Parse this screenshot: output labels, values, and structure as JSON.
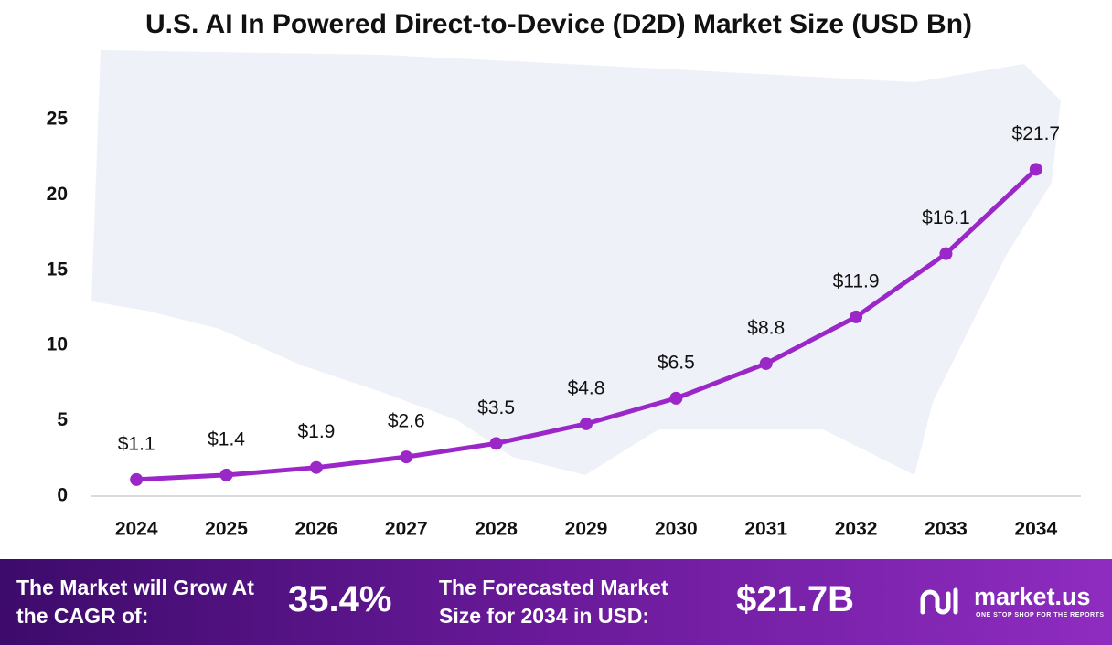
{
  "chart_data": {
    "type": "line",
    "title": "U.S. AI In Powered Direct-to-Device (D2D) Market Size (USD Bn)",
    "categories": [
      "2024",
      "2025",
      "2026",
      "2027",
      "2028",
      "2029",
      "2030",
      "2031",
      "2032",
      "2033",
      "2034"
    ],
    "values": [
      1.1,
      1.4,
      1.9,
      2.6,
      3.5,
      4.8,
      6.5,
      8.8,
      11.9,
      16.1,
      21.7
    ],
    "value_labels": [
      "$1.1",
      "$1.4",
      "$1.9",
      "$2.6",
      "$3.5",
      "$4.8",
      "$6.5",
      "$8.8",
      "$11.9",
      "$16.1",
      "$21.7"
    ],
    "color": "#9b27c9",
    "ylim": [
      0,
      25
    ],
    "yticks": [
      0,
      5,
      10,
      15,
      20,
      25
    ],
    "grid": false
  },
  "footer": {
    "cagr_text": "The Market will Grow At the CAGR of:",
    "cagr_value": "35.4%",
    "forecast_text": "The Forecasted Market Size for 2034 in USD:",
    "forecast_value": "$21.7B",
    "brand": "market.us",
    "tagline": "ONE STOP SHOP FOR THE REPORTS"
  }
}
